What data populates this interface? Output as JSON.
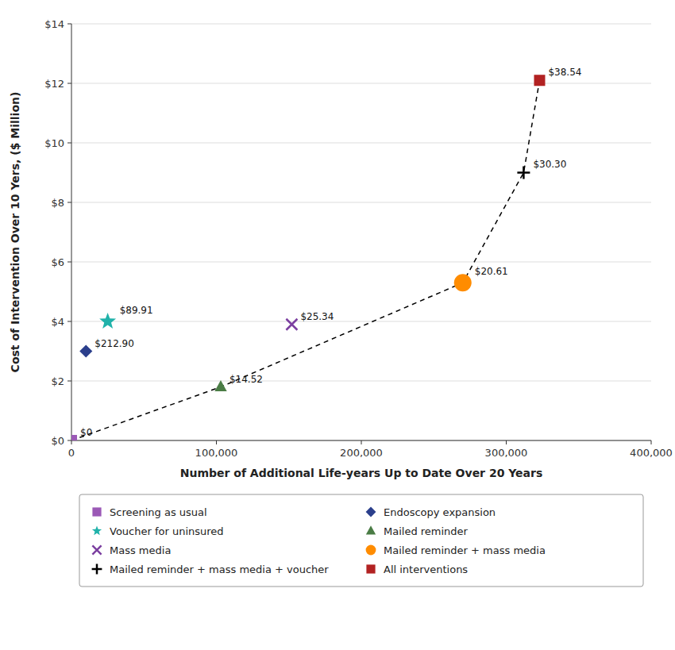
{
  "chart_data": {
    "type": "scatter",
    "xlabel": "Number of Additional Life-years Up to Date Over 20 Years",
    "ylabel": "Cost of Intervention Over 10 Yers, ($ Million)",
    "xlim": [
      0,
      400000
    ],
    "ylim": [
      0,
      14
    ],
    "xticks": [
      0,
      {
        "value": 100000,
        "label": "100,000"
      },
      {
        "value": 200000,
        "label": "200,000"
      },
      {
        "value": 300000,
        "label": "300,000"
      },
      {
        "value": 400000,
        "label": "400,000"
      }
    ],
    "yticks": [
      {
        "value": 0,
        "label": "$0"
      },
      {
        "value": 2,
        "label": "$2"
      },
      {
        "value": 4,
        "label": "$4"
      },
      {
        "value": 6,
        "label": "$6"
      },
      {
        "value": 8,
        "label": "$8"
      },
      {
        "value": 10,
        "label": "$10"
      },
      {
        "value": 12,
        "label": "$12"
      },
      {
        "value": 14,
        "label": "$14"
      }
    ],
    "grid": true,
    "legend": "bottom",
    "frontier": {
      "x": [
        0,
        103000,
        270000,
        312000,
        323000
      ],
      "values": [
        0,
        1.8,
        5.3,
        9.0,
        12.1
      ],
      "color": "#000000",
      "line_style": "dashed"
    },
    "series": [
      {
        "name": "Screening as usual",
        "color": "#9B59B6",
        "marker": "square",
        "x": [
          0
        ],
        "values": [
          0
        ],
        "annotation": "$0"
      },
      {
        "name": "Endoscopy expansion",
        "color": "#2B3F8C",
        "marker": "diamond",
        "x": [
          10000
        ],
        "values": [
          3.0
        ],
        "annotation": "$212.90"
      },
      {
        "name": "Voucher for uninsured",
        "color": "#20B2AA",
        "marker": "star",
        "x": [
          25000
        ],
        "values": [
          4.0
        ],
        "annotation": "$89.91"
      },
      {
        "name": "Mailed reminder",
        "color": "#4A7C45",
        "marker": "triangle",
        "x": [
          103000
        ],
        "values": [
          1.8
        ],
        "annotation": "$14.52"
      },
      {
        "name": "Mass media",
        "color": "#7B3FA0",
        "marker": "x",
        "x": [
          152000
        ],
        "values": [
          3.9
        ],
        "annotation": "$25.34"
      },
      {
        "name": "Mailed reminder + mass media",
        "color": "#FF8C00",
        "marker": "circle",
        "x": [
          270000
        ],
        "values": [
          5.3
        ],
        "annotation": "$20.61"
      },
      {
        "name": "Mailed reminder + mass media + voucher",
        "color": "#000000",
        "marker": "plus",
        "x": [
          312000
        ],
        "values": [
          9.0
        ],
        "annotation": "$30.30"
      },
      {
        "name": "All interventions",
        "color": "#B22222",
        "marker": "square",
        "x": [
          323000
        ],
        "values": [
          12.1
        ],
        "annotation": "$38.54"
      }
    ]
  }
}
